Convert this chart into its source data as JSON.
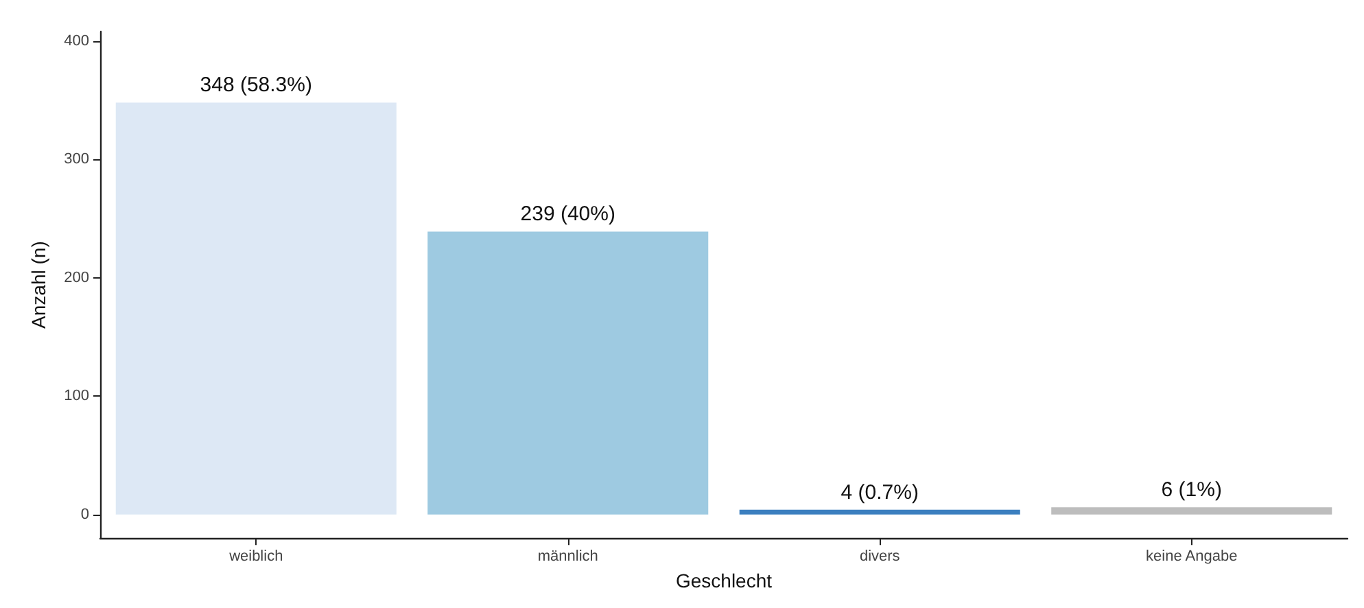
{
  "chart_data": {
    "type": "bar",
    "categories": [
      "weiblich",
      "männlich",
      "divers",
      "keine Angabe"
    ],
    "values": [
      348,
      239,
      4,
      6
    ],
    "colors": [
      "#dde8f5",
      "#9ecae1",
      "#3b7fbf",
      "#bdbdbd"
    ],
    "value_labels": [
      "348 (58.3%)",
      "239 (40%)",
      "4 (0.7%)",
      "6 (1%)"
    ],
    "xlabel": "Geschlecht",
    "ylabel": "Anzahl (n)",
    "ylim": [
      -20,
      408
    ],
    "yticks": [
      0,
      100,
      200,
      300,
      400
    ],
    "grid": false
  }
}
